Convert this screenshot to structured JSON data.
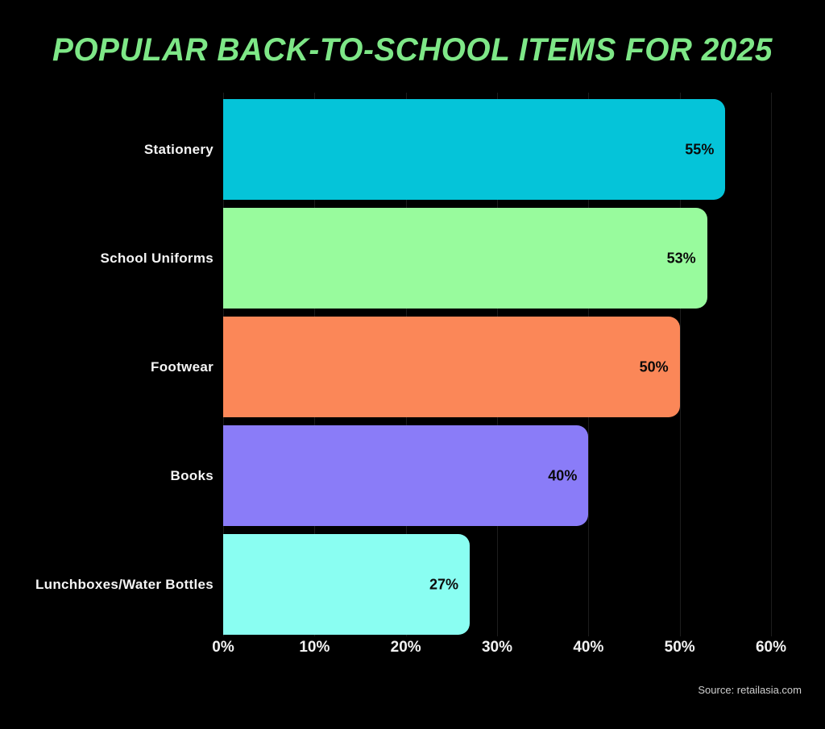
{
  "colors": {
    "background": "#000000",
    "title": "#7ee787",
    "category_label": "#f5f5f5",
    "value_label": "#0a0a0a",
    "tick_label": "#f2f2f2",
    "gridline": "#1d1d1d",
    "source_text": "#cfcfcf"
  },
  "chart_data": {
    "type": "bar",
    "orientation": "horizontal",
    "title": "POPULAR BACK-TO-SCHOOL ITEMS FOR 2025",
    "categories": [
      "Stationery",
      "School Uniforms",
      "Footwear",
      "Books",
      "Lunchboxes/Water Bottles"
    ],
    "values": [
      55,
      53,
      50,
      40,
      27
    ],
    "value_labels": [
      "55%",
      "53%",
      "50%",
      "40%",
      "27%"
    ],
    "bar_colors": [
      "#05c4d9",
      "#98fb9d",
      "#fb8758",
      "#8a7cf8",
      "#8afef2"
    ],
    "x_ticks": [
      "0%",
      "10%",
      "20%",
      "30%",
      "40%",
      "50%",
      "60%"
    ],
    "x_tick_values": [
      0,
      10,
      20,
      30,
      40,
      50,
      60
    ],
    "xlim": [
      0,
      60
    ],
    "xlabel": "",
    "ylabel": "",
    "grid": "vertical",
    "legend": "none",
    "source": "Source: retailasia.com"
  }
}
